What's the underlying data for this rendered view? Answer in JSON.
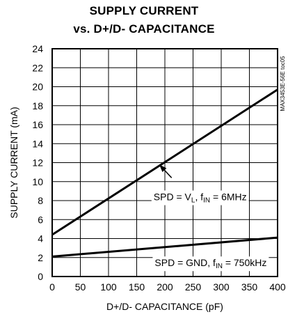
{
  "chart_data": {
    "type": "line",
    "title_line1": "SUPPLY CURRENT",
    "title_line2": "vs. D+/D- CAPACITANCE",
    "xlabel": "D+/D- CAPACITANCE (pF)",
    "ylabel": "SUPPLY CURRENT (mA)",
    "xlim": [
      0,
      400
    ],
    "ylim": [
      0,
      24
    ],
    "xticks": [
      0,
      50,
      100,
      150,
      200,
      250,
      300,
      350,
      400
    ],
    "yticks": [
      0,
      2,
      4,
      6,
      8,
      10,
      12,
      14,
      16,
      18,
      20,
      22,
      24
    ],
    "grid": true,
    "figure_id": "MAX3453E-56E toc05",
    "series": [
      {
        "id": "vl",
        "x": [
          0,
          400
        ],
        "values": [
          4.4,
          19.7
        ],
        "label_parts": [
          "SPD = V",
          "L",
          ", f",
          "IN",
          " = 6MHz"
        ],
        "label_at": [
          180,
          8.4
        ],
        "arrow_from": [
          212,
          10.4
        ],
        "arrow_to": [
          190,
          11.8
        ]
      },
      {
        "id": "gnd",
        "x": [
          0,
          400
        ],
        "values": [
          2.1,
          4.1
        ],
        "label_parts": [
          "SPD = GND, f",
          "IN",
          " = 750kHz"
        ],
        "label_at": [
          182,
          1.45
        ]
      }
    ]
  }
}
